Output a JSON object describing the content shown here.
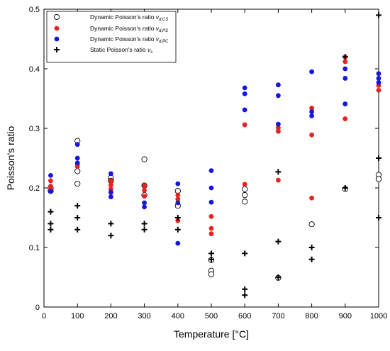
{
  "chart_data": {
    "type": "scatter",
    "xlabel": "Temperature [°C]",
    "ylabel": "Poisson's ratio",
    "xlim": [
      0,
      1000
    ],
    "ylim": [
      0,
      0.5
    ],
    "x_ticks": [
      0,
      100,
      200,
      300,
      400,
      500,
      600,
      700,
      800,
      900,
      1000
    ],
    "y_ticks": [
      0,
      0.1,
      0.2,
      0.3,
      0.4,
      0.5
    ],
    "y_tick_labels": [
      "0",
      "0.1",
      "0.2",
      "0.3",
      "0.4",
      "0.5"
    ],
    "grid": false,
    "legend_position": "top-left",
    "series": [
      {
        "name": "Dynamic Poisson's ratio",
        "sub": "d,CS",
        "marker": "open-circle",
        "color": "#000000",
        "points": [
          [
            20,
            0.2
          ],
          [
            20,
            0.195
          ],
          [
            100,
            0.279
          ],
          [
            100,
            0.228
          ],
          [
            100,
            0.207
          ],
          [
            200,
            0.217
          ],
          [
            200,
            0.212
          ],
          [
            300,
            0.248
          ],
          [
            300,
            0.204
          ],
          [
            300,
            0.188
          ],
          [
            400,
            0.195
          ],
          [
            400,
            0.17
          ],
          [
            500,
            0.079
          ],
          [
            500,
            0.061
          ],
          [
            500,
            0.055
          ],
          [
            600,
            0.198
          ],
          [
            600,
            0.188
          ],
          [
            600,
            0.177
          ],
          [
            700,
            0.049
          ],
          [
            800,
            0.139
          ],
          [
            900,
            0.198
          ],
          [
            1000,
            0.222
          ],
          [
            1000,
            0.215
          ]
        ]
      },
      {
        "name": "Dynamic Poisson's ratio",
        "sub": "d,PS",
        "marker": "filled-circle",
        "color": "#e8231f",
        "points": [
          [
            20,
            0.212
          ],
          [
            20,
            0.203
          ],
          [
            20,
            0.197
          ],
          [
            100,
            0.24
          ],
          [
            100,
            0.236
          ],
          [
            200,
            0.212
          ],
          [
            200,
            0.205
          ],
          [
            200,
            0.198
          ],
          [
            200,
            0.192
          ],
          [
            300,
            0.204
          ],
          [
            300,
            0.196
          ],
          [
            300,
            0.186
          ],
          [
            400,
            0.188
          ],
          [
            400,
            0.181
          ],
          [
            400,
            0.145
          ],
          [
            500,
            0.152
          ],
          [
            500,
            0.132
          ],
          [
            500,
            0.123
          ],
          [
            600,
            0.306
          ],
          [
            600,
            0.206
          ],
          [
            700,
            0.301
          ],
          [
            700,
            0.295
          ],
          [
            700,
            0.213
          ],
          [
            800,
            0.334
          ],
          [
            800,
            0.289
          ],
          [
            800,
            0.183
          ],
          [
            900,
            0.42
          ],
          [
            900,
            0.412
          ],
          [
            900,
            0.316
          ],
          [
            1000,
            0.372
          ],
          [
            1000,
            0.364
          ]
        ]
      },
      {
        "name": "Dynamic Poisson's ratio",
        "sub": "d,PC",
        "marker": "filled-circle",
        "color": "#1515e6",
        "points": [
          [
            20,
            0.221
          ],
          [
            20,
            0.194
          ],
          [
            100,
            0.273
          ],
          [
            100,
            0.25
          ],
          [
            100,
            0.242
          ],
          [
            200,
            0.224
          ],
          [
            200,
            0.193
          ],
          [
            200,
            0.185
          ],
          [
            300,
            0.175
          ],
          [
            300,
            0.168
          ],
          [
            400,
            0.207
          ],
          [
            400,
            0.175
          ],
          [
            400,
            0.107
          ],
          [
            500,
            0.229
          ],
          [
            500,
            0.2
          ],
          [
            500,
            0.176
          ],
          [
            600,
            0.368
          ],
          [
            600,
            0.358
          ],
          [
            600,
            0.331
          ],
          [
            700,
            0.373
          ],
          [
            700,
            0.355
          ],
          [
            700,
            0.307
          ],
          [
            800,
            0.395
          ],
          [
            800,
            0.328
          ],
          [
            800,
            0.321
          ],
          [
            900,
            0.4
          ],
          [
            900,
            0.384
          ],
          [
            900,
            0.341
          ],
          [
            1000,
            0.392
          ],
          [
            1000,
            0.384
          ],
          [
            1000,
            0.377
          ]
        ]
      },
      {
        "name": "Static Poisson's ratio",
        "sub": "s",
        "marker": "plus",
        "color": "#000000",
        "points": [
          [
            20,
            0.16
          ],
          [
            20,
            0.14
          ],
          [
            20,
            0.13
          ],
          [
            100,
            0.17
          ],
          [
            100,
            0.15
          ],
          [
            100,
            0.13
          ],
          [
            200,
            0.14
          ],
          [
            200,
            0.12
          ],
          [
            300,
            0.14
          ],
          [
            300,
            0.13
          ],
          [
            400,
            0.15
          ],
          [
            400,
            0.13
          ],
          [
            500,
            0.09
          ],
          [
            500,
            0.08
          ],
          [
            600,
            0.09
          ],
          [
            600,
            0.03
          ],
          [
            600,
            0.02
          ],
          [
            700,
            0.227
          ],
          [
            700,
            0.11
          ],
          [
            700,
            0.05
          ],
          [
            800,
            0.1
          ],
          [
            800,
            0.08
          ],
          [
            900,
            0.42
          ],
          [
            900,
            0.2
          ],
          [
            1000,
            0.49
          ],
          [
            1000,
            0.25
          ],
          [
            1000,
            0.15
          ]
        ]
      }
    ]
  }
}
